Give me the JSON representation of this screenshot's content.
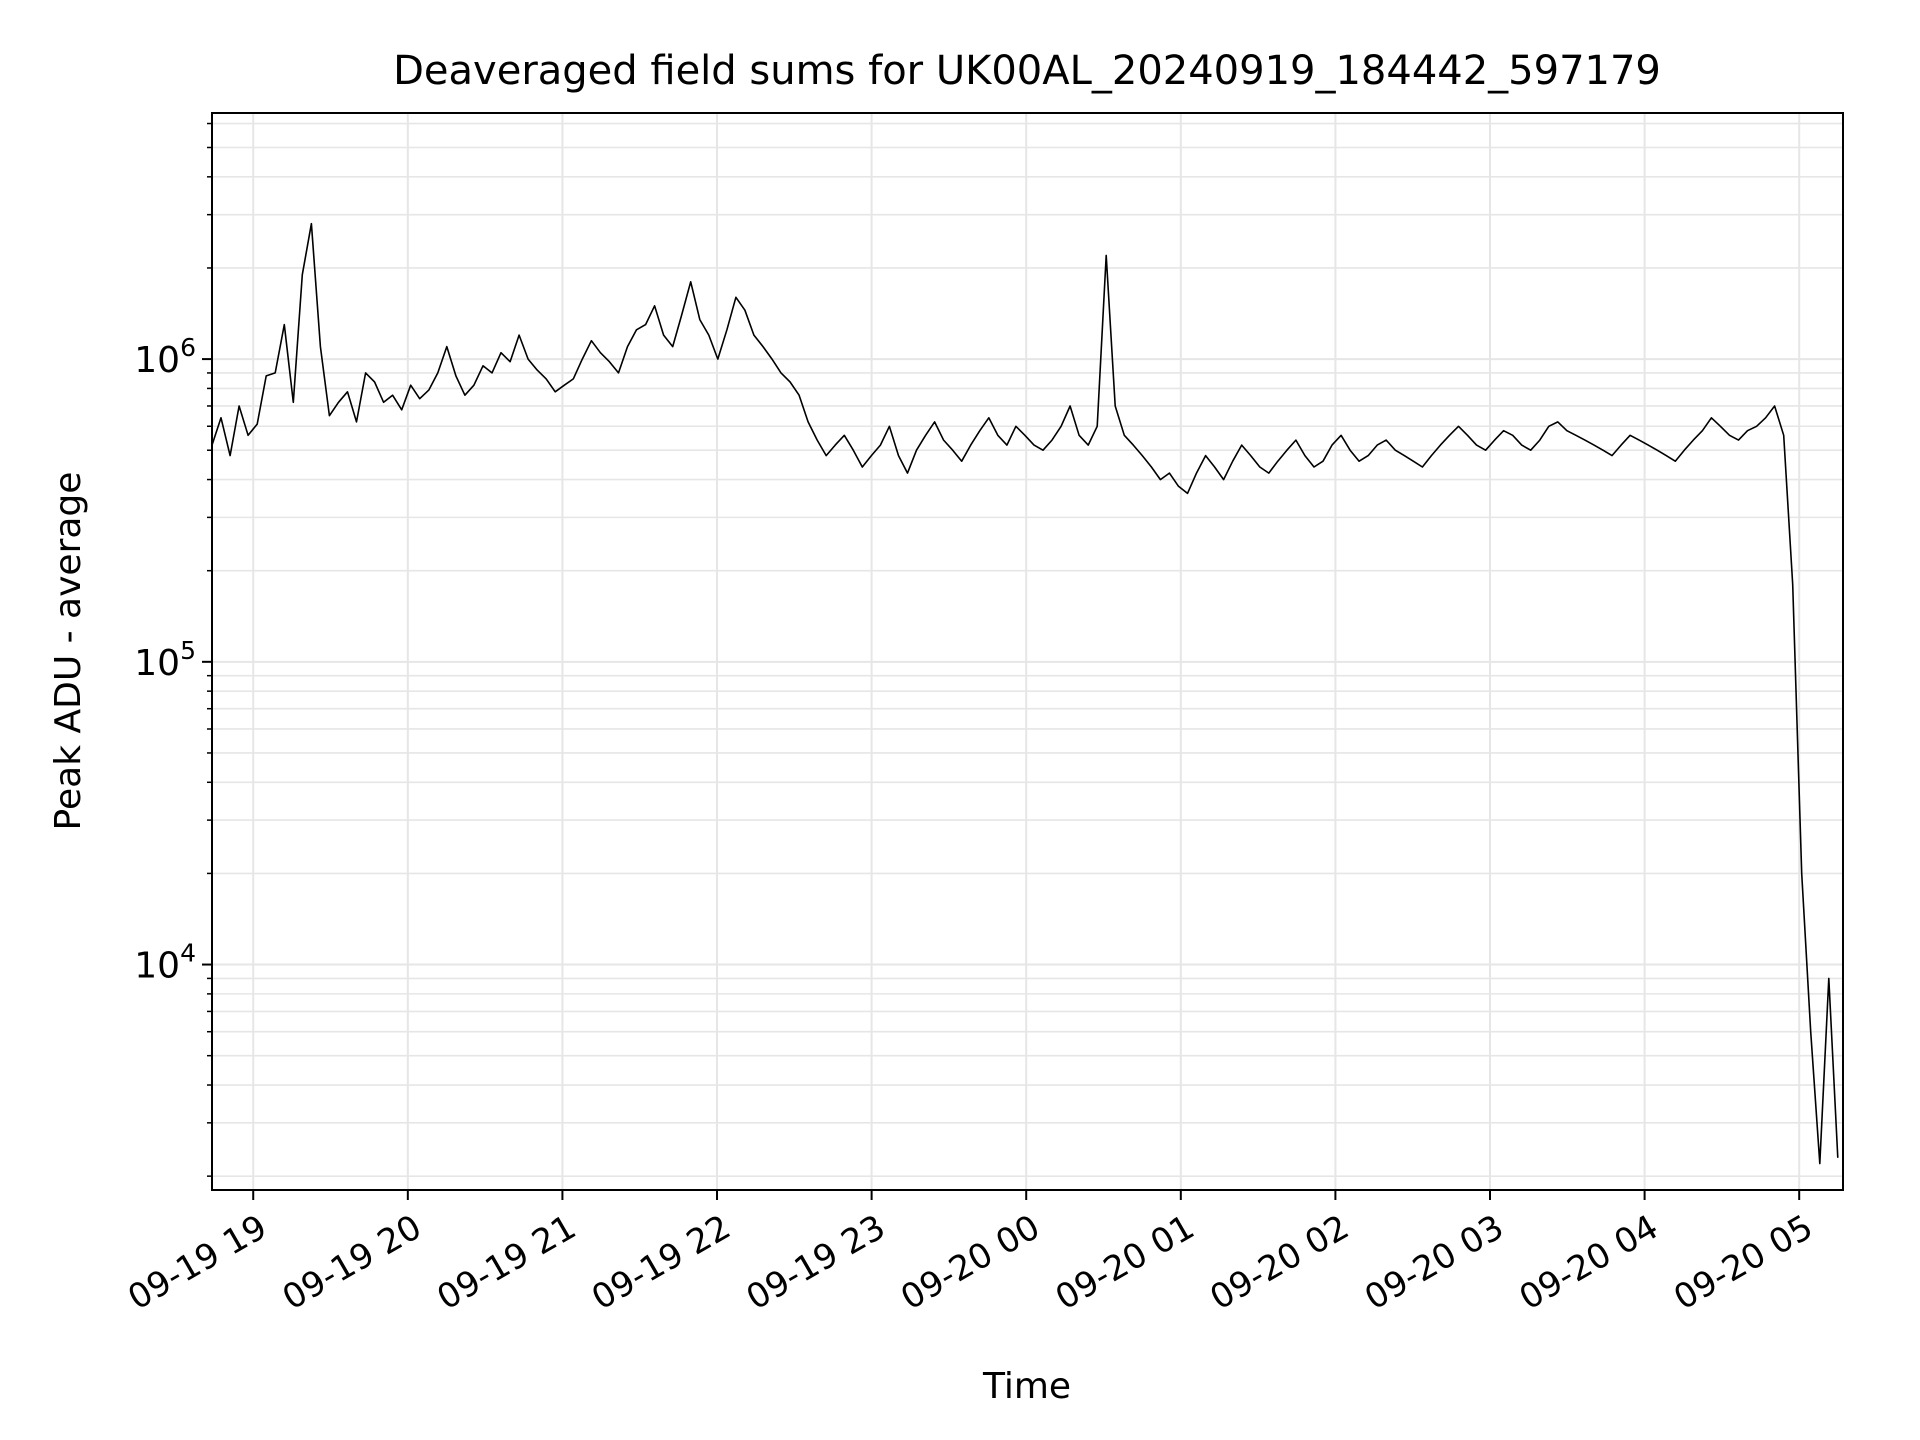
{
  "chart_data": {
    "type": "line",
    "title": "Deaveraged field sums for UK00AL_20240919_184442_597179",
    "xlabel": "Time",
    "ylabel": "Peak ADU - average",
    "x_ticks": [
      "09-19 19",
      "09-19 20",
      "09-19 21",
      "09-19 22",
      "09-19 23",
      "09-20 00",
      "09-20 01",
      "09-20 02",
      "09-20 03",
      "09-20 04",
      "09-20 05"
    ],
    "y_ticks": [
      {
        "base": "10",
        "exp": "4",
        "value": 10000
      },
      {
        "base": "10",
        "exp": "5",
        "value": 100000
      },
      {
        "base": "10",
        "exp": "6",
        "value": 1000000
      }
    ],
    "xlim": [
      "2024-09-19 18:44",
      "2024-09-20 05:17"
    ],
    "ylim": [
      1800,
      6500000
    ],
    "yscale": "log",
    "grid": true,
    "line_color": "#000000",
    "grid_color": "#e6e6e6",
    "series": [
      {
        "x_start": "2024-09-19 18:44",
        "x_end": "2024-09-20 05:15",
        "values": [
          520000,
          640000,
          480000,
          700000,
          560000,
          610000,
          880000,
          900000,
          1300000,
          720000,
          1900000,
          2800000,
          1100000,
          650000,
          720000,
          780000,
          620000,
          900000,
          840000,
          720000,
          760000,
          680000,
          820000,
          740000,
          790000,
          900000,
          1100000,
          880000,
          760000,
          820000,
          950000,
          900000,
          1050000,
          980000,
          1200000,
          1000000,
          920000,
          860000,
          780000,
          820000,
          860000,
          1000000,
          1150000,
          1050000,
          980000,
          900000,
          1100000,
          1250000,
          1300000,
          1500000,
          1200000,
          1100000,
          1400000,
          1800000,
          1350000,
          1200000,
          1000000,
          1250000,
          1600000,
          1450000,
          1200000,
          1100000,
          1000000,
          900000,
          840000,
          760000,
          620000,
          540000,
          480000,
          520000,
          560000,
          500000,
          440000,
          480000,
          520000,
          600000,
          480000,
          420000,
          500000,
          560000,
          620000,
          540000,
          500000,
          460000,
          520000,
          580000,
          640000,
          560000,
          520000,
          600000,
          560000,
          520000,
          500000,
          540000,
          600000,
          700000,
          560000,
          520000,
          600000,
          2200000,
          700000,
          560000,
          520000,
          480000,
          440000,
          400000,
          420000,
          380000,
          360000,
          420000,
          480000,
          440000,
          400000,
          460000,
          520000,
          480000,
          440000,
          420000,
          460000,
          500000,
          540000,
          480000,
          440000,
          460000,
          520000,
          560000,
          500000,
          460000,
          480000,
          520000,
          540000,
          500000,
          480000,
          460000,
          440000,
          480000,
          520000,
          560000,
          600000,
          560000,
          520000,
          500000,
          540000,
          580000,
          560000,
          520000,
          500000,
          540000,
          600000,
          620000,
          580000,
          560000,
          540000,
          520000,
          500000,
          480000,
          520000,
          560000,
          540000,
          520000,
          500000,
          480000,
          460000,
          500000,
          540000,
          580000,
          640000,
          600000,
          560000,
          540000,
          580000,
          600000,
          640000,
          700000,
          560000,
          180000,
          20000,
          6000,
          2200,
          9000,
          2300
        ]
      }
    ]
  }
}
